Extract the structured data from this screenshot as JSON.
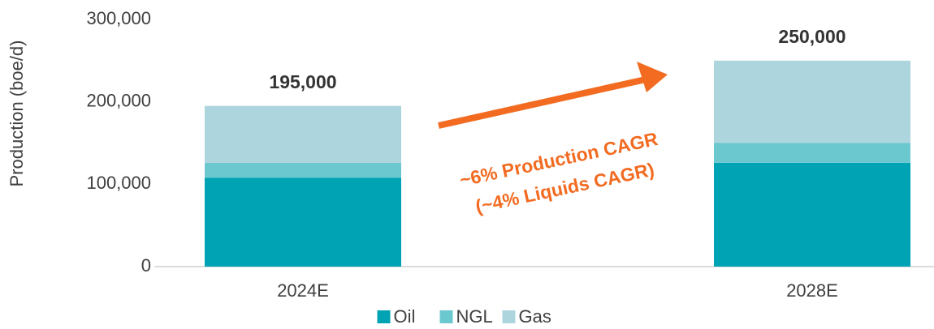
{
  "chart_data": {
    "type": "stacked_bar",
    "y_label": "Production (boe/d)",
    "categories": [
      "2024E",
      "2028E"
    ],
    "series": [
      {
        "name": "Oil",
        "color": "#00a3b4",
        "values": [
          108000,
          126000
        ]
      },
      {
        "name": "NGL",
        "color": "#6cc8cf",
        "values": [
          18000,
          24000
        ]
      },
      {
        "name": "Gas",
        "color": "#add5de",
        "values": [
          69000,
          100000
        ]
      }
    ],
    "totals": [
      195000,
      250000
    ],
    "total_labels": [
      "195,000",
      "250,000"
    ],
    "ylim": [
      0,
      300000
    ],
    "yticks": [
      0,
      {
        "value": 100000,
        "label": "100,000"
      },
      {
        "value": 200000,
        "label": "200,000"
      },
      {
        "value": 300000,
        "label": "300,000"
      }
    ],
    "annotation": [
      "~6% Production CAGR",
      "(~4% Liquids CAGR)"
    ],
    "annotation_color": "#f26b21"
  }
}
